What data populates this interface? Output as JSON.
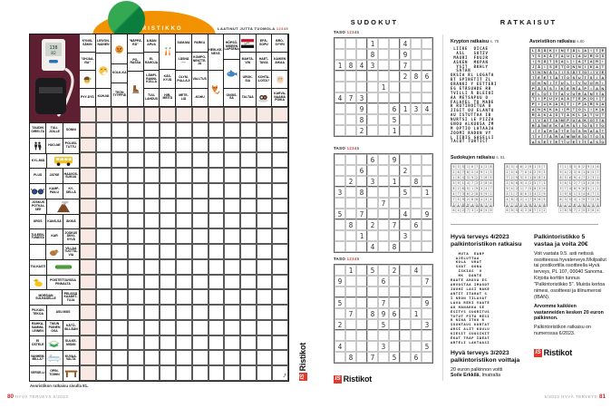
{
  "brand": {
    "prefix": "IS",
    "name": "Ristikot",
    "accent_color": "#e23b2e"
  },
  "left_page": {
    "logo_text": "AVORISTIKKO",
    "logo_colors": {
      "dome": "#f39200",
      "ball_light": "#35a852",
      "ball_dark": "#0b7e3e"
    },
    "byline": "LAATINUT JUTTA TUOMOLA",
    "byline_digits": "12345",
    "byline_level": 3,
    "caption": "Avoristikon ratkaisu sivulla 81.",
    "footer_page": "80",
    "footer_magazine": "HYVÄ TERVEYS 5/2023",
    "signature": "J",
    "crossword": {
      "photo": "blood-pressure-monitor",
      "highlight_color": "#f8e9e4",
      "grid_cols": 13,
      "grid_rows": 18,
      "top_clues": [
        [
          {
            "t": "KYNIS-SÄKIN"
          },
          {
            "t": "\"OHJAA-VIA\""
          },
          {
            "i": "child-emoji"
          },
          {
            "t": "PYY-DYS"
          }
        ],
        [
          {
            "t": "LEIVON-NAINEN"
          },
          {
            "i": "sneezing-emoji",
            "f": 2
          },
          {
            "t": "KUH-NII"
          }
        ],
        [
          {
            "i": "angry-emoji",
            "f": 1.7
          },
          {
            "t": "KOLK-KA"
          },
          {
            "t": "TEON TYYPPIÄ",
            "f": 1.3
          }
        ],
        [
          {
            "t": "\"NÄPPÄ-RÄ\""
          },
          {
            "t": "PO-RASSA"
          },
          {
            "i": "ice-skate",
            "f": 2
          }
        ],
        [
          {
            "t": "ILMAN APUA"
          },
          {
            "t": "EI-RAHOJA"
          },
          {
            "t": "LÄMPI-RANNI-KOLLA"
          },
          {
            "t": "TUU-LAHDUS"
          }
        ],
        [
          {
            "i": "carrots",
            "f": 2
          },
          {
            "t": "KÄS-KYJÄ"
          },
          {
            "t": "HIR-MEITÄ"
          }
        ],
        [
          {
            "t": "SUM-MA"
          },
          {
            "t": "LÄSNÄ ·····"
          },
          {
            "t": "OLYM-PIA-LAJI"
          },
          {
            "t": "METE-LIÄ"
          }
        ],
        [
          {
            "t": "PARKU"
          },
          {
            "t": "KOMPO-NENTTE-JA"
          },
          {
            "t": "VALI-TUS"
          },
          {
            "t": "-KOHU"
          }
        ],
        [
          {
            "t": "HEIK-KE-NEVÄ",
            "f": 2
          },
          {
            "i": "fox",
            "f": 2
          }
        ],
        [
          {
            "t": "HÖPSÖ-MISEEN LAPSENA",
            "f": 1.4
          },
          {
            "i": "fish",
            "f": 1.6
          },
          {
            "t": "ONGIS-SA"
          }
        ],
        [
          {
            "i": "iraq-flag"
          },
          {
            "t": "MAHTA-VIN"
          },
          {
            "t": "UROK-SIA"
          },
          {
            "t": "TAI-TAA"
          }
        ],
        [
          {
            "t": "EPÄ-SOPU"
          },
          {
            "t": "HAET-TAVIA"
          },
          {
            "t": "KOHTA-LOITA?"
          },
          {
            "i": "sushi"
          }
        ],
        [
          {
            "t": "BRO-SYYRI"
          },
          {
            "t": "KAIKEN AIKAA"
          },
          {
            "i": "old-man"
          },
          {
            "t": "KARVA-NAAMA POIKA"
          }
        ]
      ],
      "left_clues": [
        [
          {
            "t": "TAUDIN OIREI-TA"
          },
          {
            "t": "TULI-JOILLE"
          },
          {
            "t": "SONNI"
          }
        ],
        [
          {
            "i": "family"
          },
          {
            "t": "HUO-NE"
          },
          {
            "t": "POLIISI-TUTTU"
          }
        ],
        [
          {
            "t": "KYL-MIÄ"
          },
          {
            "i": "bus",
            "s": 2
          }
        ],
        [
          {
            "t": "PLUS"
          },
          {
            "t": "JATKE"
          },
          {
            "t": "HAAVOS-SUKUA"
          }
        ],
        [
          {
            "i": "sunglasses"
          },
          {
            "t": "KAMP-PAILU"
          },
          {
            "t": "KY-SELLÄ"
          }
        ],
        [
          {
            "t": "JOSKUS POTKAI-SEE"
          },
          {
            "i": "volcano",
            "s": 2
          }
        ],
        [
          {
            "t": "UROS"
          },
          {
            "t": "KANS-SA"
          },
          {
            "t": "ÄKKIÄ"
          }
        ],
        [
          {
            "t": "TULEEN-TUNEITA"
          },
          {
            "t": "KAR"
          },
          {
            "t": "JOSKUS ÄKKI-SYVÄ"
          }
        ],
        [
          {
            "t": ""
          },
          {
            "i": "bird"
          },
          {
            "t": "VILLAA TUOTTA-VIA"
          }
        ],
        [
          {
            "t": "TIU-KASTI"
          },
          {
            "i": "cucumber",
            "s": 2
          }
        ],
        [
          {
            "i": "duck"
          },
          {
            "t": "POISTETTAVISSA PINNALTA",
            "s": 2
          }
        ],
        [
          {
            "t": "MORSIAN SULHASELLE",
            "s": 2
          },
          {
            "t": "PELISSÄ KAADET-TUJA"
          }
        ],
        [
          {
            "t": "PILKAN-TEKOA"
          },
          {
            "t": "ASU-MUS",
            "s": 2
          }
        ],
        [
          {
            "t": "RAHKA-SAMMA-LEINEN"
          },
          {
            "t": "TIKUN PUINEN OSA"
          },
          {
            "t": "KÄTÖ-SILLÄÄN"
          }
        ],
        [
          {
            "t": "EI OSTELE"
          },
          {
            "i": "book"
          },
          {
            "t": "SULKE-MISIIN"
          }
        ],
        [
          {
            "t": "VANHEM-MILLA?"
          },
          {
            "i": "bath"
          },
          {
            "t": "KUVAA-VALTA"
          }
        ],
        [
          {
            "t": "VERSE-LI"
          },
          {
            "t": "OPIN-TOIHIN"
          },
          {
            "i": "table"
          }
        ]
      ]
    }
  },
  "sudoku_section": {
    "title": "SUDOKUT",
    "level_label": "TASO",
    "level_digits": "12345",
    "puzzles": [
      {
        "level": 2,
        "givens": [
          "...1..4..",
          "...8..9..",
          "1843..7..",
          "......286",
          "....1....",
          "473......",
          "..9..6134",
          "..8..5...",
          "..2..1..."
        ]
      },
      {
        "level": 3,
        "givens": [
          "...6.9...",
          "..6...2..",
          ".2.3.1.8.",
          "3.8...5.1",
          "....7....",
          "5.7...4.9",
          ".8.2.7.6.",
          "..1...3..",
          "...4.8..."
        ]
      },
      {
        "level": 4,
        "givens": [
          ".1.5.2.4.",
          "9...6...7",
          ".........",
          "5...7...9",
          ".7.896.1.",
          "2...5...3",
          ".........",
          "4...3...5",
          ".8.7.5.6."
        ]
      }
    ]
  },
  "solutions_section": {
    "title": "RATKAISUT",
    "krypton": {
      "heading": "Krypton ratkaisu",
      "page_ref": "s. 79",
      "rows": [
        " LIIKE  DICAE",
        "  ASL   SOTZV",
        " MAURI  FOUJR",
        " ASKEN  MOPAN",
        "  YSIT  BKHLY",
        "  SATAN",
        "OKSIA RL LOGATA",
        "BT SPINETIT ZL",
        "ORANKI Y EETTERI",
        "EG ETÄSUHDE RB",
        "TVILLI Ä BLEIOI",
        "AA METSAPUU O",
        "FALAFEL TO MADE",
        "R RUTINOITUA O",
        "JIGIT OU ELANTO",
        "AU ISTUTTAA IB",
        "NURTSI LE PIZZA",
        "GNOU ALKUOSA ZM",
        "M OPTIO LATAAJA",
        "ZOOMI RADON VY",
        "L IIBIS GASELLI",
        "TACOT TURTICT"
      ]
    },
    "avoristikko": {
      "heading": "Avoristikon ratkaisu",
      "page_ref": "s.80",
      "rows": [
        "LÄÄKINTÄLAITE",
        "YSKÄTAULAUROS",
        "ISÄTSALIATARI",
        "JÄISETONNIKAT",
        "YNNÄLISÄTOIVE",
        "TEETATOSUTSIA",
        "ONNITULIVUORI",
        "PÄSSIKERAPIAN",
        "ELOTTAVURANTA",
        "TIPUVAATEKOIT",
        "PIUKASTIPARSA",
        "ANKKAIRTOLIKA",
        "RAKASTAKLATUT",
        "IVATAMPUAKOTA",
        "RÄMEKARSIOSTO",
        "ITARATEOSHAAT",
        "TYTÄRAMMEOTOS",
        "ASETETUETTASO"
      ]
    },
    "sudoku_solutions": {
      "heading": "Sudokujen ratkaisu",
      "page_ref": "s. 81",
      "grids": [
        [
          "935167428",
          "267854913",
          "184392765",
          "591473286",
          "826519347",
          "473628591",
          "759286134",
          "318945672",
          "642731859"
        ],
        [
          "834629157",
          "156784293",
          "729351684",
          "368942571",
          "942175836",
          "517863429",
          "483217965",
          "271596348",
          "695438712"
        ],
        [
          "713582946",
          "942361857",
          "856947231",
          "561273489",
          "374896512",
          "298154673",
          "635419728",
          "427638195",
          "189725364"
        ]
      ]
    },
    "prize_solution": {
      "heading1": "Hyvä terveys 4/2023",
      "heading2": "palkintoristikon ratkaisu",
      "rows": [
        "   MUTA  EARP",
        "  AJELUTTAA",
        "  KOLA  URAT",
        "  SUAT  OONA",
        "   ISKIAS  U",
        "   MK  DANTE",
        "RAATE AHAVA ES",
        "ARVOSTAA IMAGOT",
        "JOUHI LASI HAKE",
        "ANTIT ITARAT S",
        "I NEON TILAVAT",
        "LAVA REKI VAATE",
        "AO HANAKKA SE",
        "ESITYS SUORITUS",
        "TUTUT PITO MESI",
        "R NINA ITKU R",
        "SUUNTAUS KORTAT",
        "ARSI ALIT KOULU",
        "KIESIT SUOSIKIT",
        "EKAT TRAP IDEAT",
        "ARTELI LAKTAASI"
      ]
    },
    "winner": {
      "heading1": "Hyvä terveys 3/2023",
      "heading2": "palkintoristikon voittaja",
      "line": "20 euron palkinnon voitti",
      "name": "Soile Erkkilä",
      "suffix": ", Imatralta"
    },
    "prize_info": {
      "heading1": "Palkintoristikko 5",
      "heading2": "vastaa ja voita 20€",
      "body": "Voit vastata 9.5. asti netissä osoitteessa hyvaterveys.fi/kilpailut tai postikortilla osoitteella Hyvä terveys, PL 107, 00040 Sanoma. Kirjoita korttiin tunnus \"Palkintoristikko 5\". Muista kertoa nimesi, osoitteesi ja tilinumerosi (IBAN).",
      "body_bold": "Arvomme kaikkien vastanneiden kesken 20 euron palkinnon.",
      "body_tail": "Palkintoristikon ratkaisu on numerossa 6/2023."
    },
    "footer_magazine": "5/2023 HYVÄ TERVEYS",
    "footer_page": "81"
  }
}
